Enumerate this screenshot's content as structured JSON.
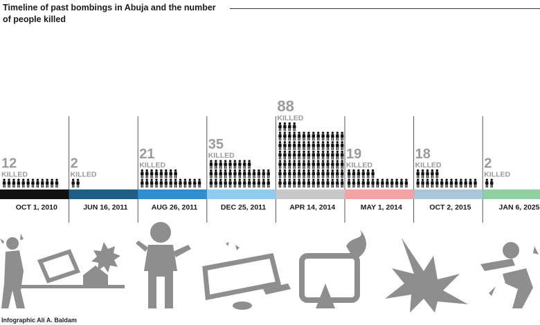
{
  "title": {
    "line1": "Timeline of past bombings in Abuja and the number",
    "line2": "of people killed"
  },
  "credit": "Infographic Ali A. Baldam",
  "colors": {
    "figure": "#111111",
    "count_text": "#9a9a9a",
    "illustration": "#8e8e8e",
    "divider": "#555555"
  },
  "chart_data": {
    "type": "bar",
    "title": "Timeline of past bombings in Abuja and the number of people killed",
    "unit_label": "KILLED",
    "categories": [
      "OCT 1, 2010",
      "JUN 16, 2011",
      "AUG 26, 2011",
      "DEC 25, 2011",
      "APR 14, 2014",
      "MAY 1, 2014",
      "OCT 2, 2015",
      "JAN 6, 2025"
    ],
    "values": [
      12,
      2,
      21,
      35,
      88,
      19,
      18,
      2
    ],
    "band_colors": [
      "#111111",
      "#1d5f86",
      "#2d8fd0",
      "#8fcdf0",
      "#c8c8c8",
      "#f3a3a3",
      "#a9c7d9",
      "#8fd0a0"
    ],
    "encoding": "pictogram"
  },
  "illustrations": [
    {
      "name": "injured-person-icon",
      "position": 1
    },
    {
      "name": "wrecked-car-icon",
      "position": 2
    },
    {
      "name": "explosion-house-icon",
      "position": 3
    },
    {
      "name": "bomber-figure-icon",
      "position": 4
    },
    {
      "name": "overturned-vehicle-icon",
      "position": 5
    },
    {
      "name": "burning-vehicle-icon",
      "position": 6
    },
    {
      "name": "explosion-burst-icon",
      "position": 7
    },
    {
      "name": "blast-figure-icon",
      "position": 8
    }
  ]
}
